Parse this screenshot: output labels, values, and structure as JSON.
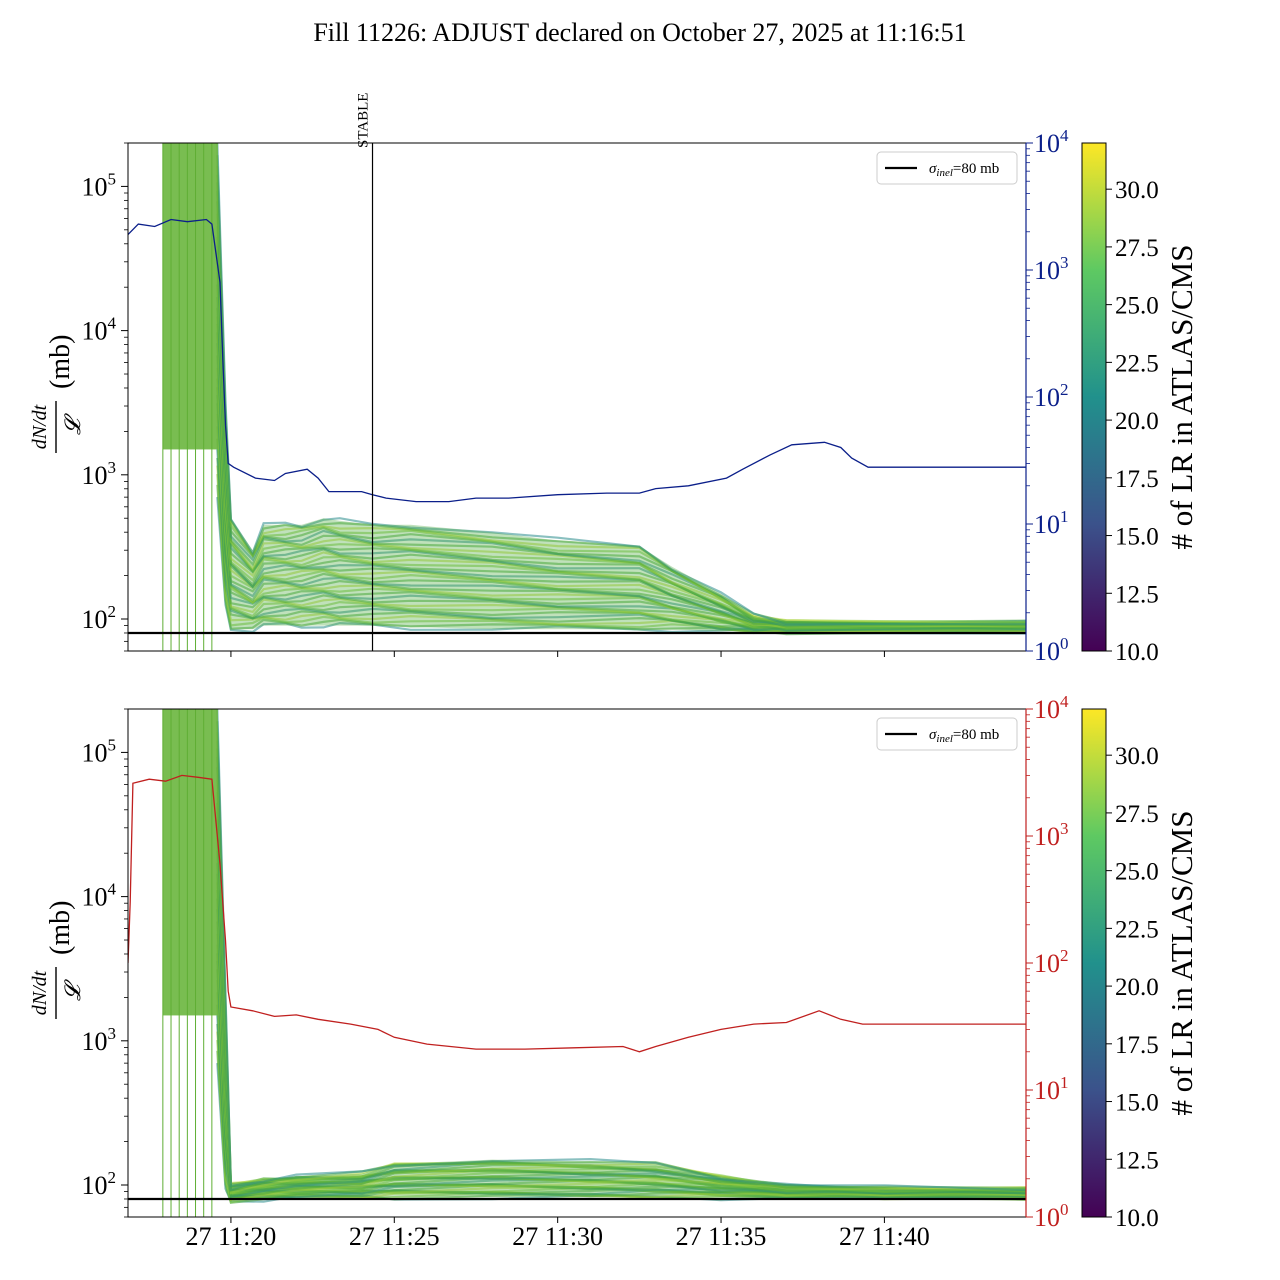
{
  "figure": {
    "title": "Fill 11226: ADJUST declared on October 27, 2025 at 11:16:51"
  },
  "colors": {
    "band_core": "#4aa83c",
    "band_mid": "#7cc63e",
    "band_high": "#b9d83a",
    "band_low": "#2a8c8c",
    "vline": "#5fae34",
    "reference_line": "#000000",
    "top_overlay": "#0b1f8a",
    "bottom_overlay": "#c0201f",
    "colormap": [
      "#440154",
      "#3b528b",
      "#21918c",
      "#5ec962",
      "#fde725"
    ]
  },
  "chart_data": [
    {
      "type": "line",
      "panel": "top",
      "ylabel": "(mb)",
      "ylabel_fraction": {
        "numerator": "dN/dt",
        "denominator": "𝓛"
      },
      "ylim": [
        60,
        200000
      ],
      "y_scale": "log",
      "y_ticks": [
        {
          "base": "10",
          "exp": "2"
        },
        {
          "base": "10",
          "exp": "3"
        },
        {
          "base": "10",
          "exp": "4"
        },
        {
          "base": "10",
          "exp": "5"
        }
      ],
      "y2_ticks": [
        {
          "base": "10",
          "exp": "0"
        },
        {
          "base": "10",
          "exp": "1"
        },
        {
          "base": "10",
          "exp": "2"
        },
        {
          "base": "10",
          "exp": "3"
        },
        {
          "base": "10",
          "exp": "4"
        }
      ],
      "y2lim": [
        1,
        10000
      ],
      "y2_scale": "log",
      "y2_color": "#0b1f8a",
      "xlim": [
        "2025-10-27 11:16:51",
        "2025-10-27 11:44:20"
      ],
      "x_tick_labels": [
        "27 11:20",
        "27 11:25",
        "27 11:30",
        "27 11:35",
        "27 11:40"
      ],
      "x_tick_times": [
        "11:20",
        "11:25",
        "11:30",
        "11:35",
        "11:40"
      ],
      "x_tick_labels_visible": false,
      "vertical_marker": {
        "time": "11:24:20",
        "label": "STABLE"
      },
      "legend": {
        "label_symbol": "σ",
        "label_subscript": "inel",
        "label_rest": "=80 mb",
        "position": "top-right"
      },
      "reference_line": {
        "y": 80,
        "name": "σinel=80 mb"
      },
      "green_spikes_times": [
        "11:17:55",
        "11:18:10",
        "11:18:25",
        "11:18:40",
        "11:18:55",
        "11:19:10",
        "11:19:25"
      ],
      "band": {
        "description_points": [
          {
            "t": "11:19:35",
            "lo": 700,
            "hi": 200000
          },
          {
            "t": "11:19:50",
            "lo": 120,
            "hi": 3000
          },
          {
            "t": "11:20:00",
            "lo": 85,
            "hi": 500
          },
          {
            "t": "11:20:40",
            "lo": 85,
            "hi": 300
          },
          {
            "t": "11:21:00",
            "lo": 90,
            "hi": 450
          },
          {
            "t": "11:21:40",
            "lo": 90,
            "hi": 450
          },
          {
            "t": "11:22:10",
            "lo": 90,
            "hi": 450
          },
          {
            "t": "11:22:50",
            "lo": 90,
            "hi": 500
          },
          {
            "t": "11:23:20",
            "lo": 90,
            "hi": 480
          },
          {
            "t": "11:24:20",
            "lo": 90,
            "hi": 450
          },
          {
            "t": "11:25:30",
            "lo": 88,
            "hi": 450
          },
          {
            "t": "11:28:00",
            "lo": 85,
            "hi": 400
          },
          {
            "t": "11:30:00",
            "lo": 85,
            "hi": 350
          },
          {
            "t": "11:32:30",
            "lo": 85,
            "hi": 320
          },
          {
            "t": "11:33:30",
            "lo": 85,
            "hi": 230
          },
          {
            "t": "11:35:00",
            "lo": 82,
            "hi": 150
          },
          {
            "t": "11:36:00",
            "lo": 82,
            "hi": 105
          },
          {
            "t": "11:37:00",
            "lo": 82,
            "hi": 95
          },
          {
            "t": "11:44:20",
            "lo": 82,
            "hi": 95
          }
        ]
      },
      "overlay_series": {
        "name": "",
        "axis": "right",
        "points": [
          [
            "11:16:51",
            1900
          ],
          [
            "11:17:10",
            2300
          ],
          [
            "11:17:40",
            2200
          ],
          [
            "11:18:10",
            2500
          ],
          [
            "11:18:40",
            2400
          ],
          [
            "11:19:15",
            2500
          ],
          [
            "11:19:25",
            2300
          ],
          [
            "11:19:40",
            800
          ],
          [
            "11:19:45",
            200
          ],
          [
            "11:19:50",
            60
          ],
          [
            "11:19:55",
            30
          ],
          [
            "11:20:05",
            28
          ],
          [
            "11:20:45",
            23
          ],
          [
            "11:21:20",
            22
          ],
          [
            "11:21:40",
            25
          ],
          [
            "11:22:20",
            27
          ],
          [
            "11:22:40",
            23
          ],
          [
            "11:23:00",
            18
          ],
          [
            "11:24:00",
            18
          ],
          [
            "11:24:20",
            17
          ],
          [
            "11:24:45",
            16
          ],
          [
            "11:25:40",
            15
          ],
          [
            "11:26:40",
            15
          ],
          [
            "11:27:30",
            16
          ],
          [
            "11:28:30",
            16
          ],
          [
            "11:30:00",
            17
          ],
          [
            "11:31:30",
            17.5
          ],
          [
            "11:32:30",
            17.5
          ],
          [
            "11:33:00",
            19
          ],
          [
            "11:34:00",
            20
          ],
          [
            "11:35:10",
            23
          ],
          [
            "11:35:40",
            27
          ],
          [
            "11:36:30",
            35
          ],
          [
            "11:37:10",
            42
          ],
          [
            "11:38:10",
            44
          ],
          [
            "11:38:40",
            40
          ],
          [
            "11:39:00",
            33
          ],
          [
            "11:39:30",
            28
          ],
          [
            "11:41:00",
            28
          ],
          [
            "11:44:20",
            28
          ]
        ]
      }
    },
    {
      "type": "line",
      "panel": "bottom",
      "ylabel": "(mb)",
      "ylabel_fraction": {
        "numerator": "dN/dt",
        "denominator": "𝓛"
      },
      "ylim": [
        60,
        200000
      ],
      "y_scale": "log",
      "y_ticks": [
        {
          "base": "10",
          "exp": "2"
        },
        {
          "base": "10",
          "exp": "3"
        },
        {
          "base": "10",
          "exp": "4"
        },
        {
          "base": "10",
          "exp": "5"
        }
      ],
      "y2_ticks": [
        {
          "base": "10",
          "exp": "0"
        },
        {
          "base": "10",
          "exp": "1"
        },
        {
          "base": "10",
          "exp": "2"
        },
        {
          "base": "10",
          "exp": "3"
        },
        {
          "base": "10",
          "exp": "4"
        }
      ],
      "y2lim": [
        1,
        10000
      ],
      "y2_scale": "log",
      "y2_color": "#c0201f",
      "xlim": [
        "2025-10-27 11:16:51",
        "2025-10-27 11:44:20"
      ],
      "x_tick_labels": [
        "27 11:20",
        "27 11:25",
        "27 11:30",
        "27 11:35",
        "27 11:40"
      ],
      "x_tick_times": [
        "11:20",
        "11:25",
        "11:30",
        "11:35",
        "11:40"
      ],
      "x_tick_labels_visible": true,
      "legend": {
        "label_symbol": "σ",
        "label_subscript": "inel",
        "label_rest": "=80 mb",
        "position": "top-right"
      },
      "reference_line": {
        "y": 80,
        "name": "σinel=80 mb"
      },
      "green_spikes_times": [
        "11:17:55",
        "11:18:10",
        "11:18:25",
        "11:18:40",
        "11:18:55",
        "11:19:10",
        "11:19:25"
      ],
      "band": {
        "description_points": [
          {
            "t": "11:19:35",
            "lo": 700,
            "hi": 200000
          },
          {
            "t": "11:19:50",
            "lo": 90,
            "hi": 2000
          },
          {
            "t": "11:20:00",
            "lo": 78,
            "hi": 100
          },
          {
            "t": "11:21:00",
            "lo": 80,
            "hi": 110
          },
          {
            "t": "11:22:00",
            "lo": 82,
            "hi": 115
          },
          {
            "t": "11:24:00",
            "lo": 82,
            "hi": 120
          },
          {
            "t": "11:25:00",
            "lo": 82,
            "hi": 140
          },
          {
            "t": "11:28:00",
            "lo": 82,
            "hi": 150
          },
          {
            "t": "11:31:00",
            "lo": 82,
            "hi": 145
          },
          {
            "t": "11:33:00",
            "lo": 82,
            "hi": 140
          },
          {
            "t": "11:35:00",
            "lo": 82,
            "hi": 115
          },
          {
            "t": "11:37:00",
            "lo": 82,
            "hi": 100
          },
          {
            "t": "11:40:00",
            "lo": 82,
            "hi": 95
          },
          {
            "t": "11:44:20",
            "lo": 82,
            "hi": 93
          }
        ]
      },
      "overlay_series": {
        "name": "",
        "axis": "right",
        "points": [
          [
            "11:16:51",
            100
          ],
          [
            "11:16:55",
            300
          ],
          [
            "11:17:00",
            2600
          ],
          [
            "11:17:30",
            2800
          ],
          [
            "11:18:00",
            2700
          ],
          [
            "11:18:30",
            3000
          ],
          [
            "11:19:00",
            2900
          ],
          [
            "11:19:25",
            2800
          ],
          [
            "11:19:40",
            600
          ],
          [
            "11:19:50",
            150
          ],
          [
            "11:19:55",
            60
          ],
          [
            "11:20:00",
            45
          ],
          [
            "11:20:40",
            42
          ],
          [
            "11:21:20",
            38
          ],
          [
            "11:22:00",
            39
          ],
          [
            "11:22:40",
            36
          ],
          [
            "11:23:40",
            33
          ],
          [
            "11:24:30",
            30
          ],
          [
            "11:25:00",
            26
          ],
          [
            "11:26:00",
            23
          ],
          [
            "11:27:30",
            21
          ],
          [
            "11:29:00",
            21
          ],
          [
            "11:30:30",
            21.5
          ],
          [
            "11:32:00",
            22
          ],
          [
            "11:32:30",
            20
          ],
          [
            "11:33:00",
            22
          ],
          [
            "11:34:00",
            26
          ],
          [
            "11:35:00",
            30
          ],
          [
            "11:36:00",
            33
          ],
          [
            "11:37:00",
            34
          ],
          [
            "11:38:00",
            42
          ],
          [
            "11:38:40",
            36
          ],
          [
            "11:39:20",
            33
          ],
          [
            "11:40:30",
            33
          ],
          [
            "11:44:20",
            33
          ]
        ]
      }
    }
  ],
  "colorbars": [
    {
      "panel": "top",
      "label": "# of LR in ATLAS/CMS",
      "range": [
        10.0,
        32.0
      ],
      "tick_labels": [
        "10.0",
        "12.5",
        "15.0",
        "17.5",
        "20.0",
        "22.5",
        "25.0",
        "27.5",
        "30.0"
      ]
    },
    {
      "panel": "bottom",
      "label": "# of LR in ATLAS/CMS",
      "range": [
        10.0,
        32.0
      ],
      "tick_labels": [
        "10.0",
        "12.5",
        "15.0",
        "17.5",
        "20.0",
        "22.5",
        "25.0",
        "27.5",
        "30.0"
      ]
    }
  ]
}
